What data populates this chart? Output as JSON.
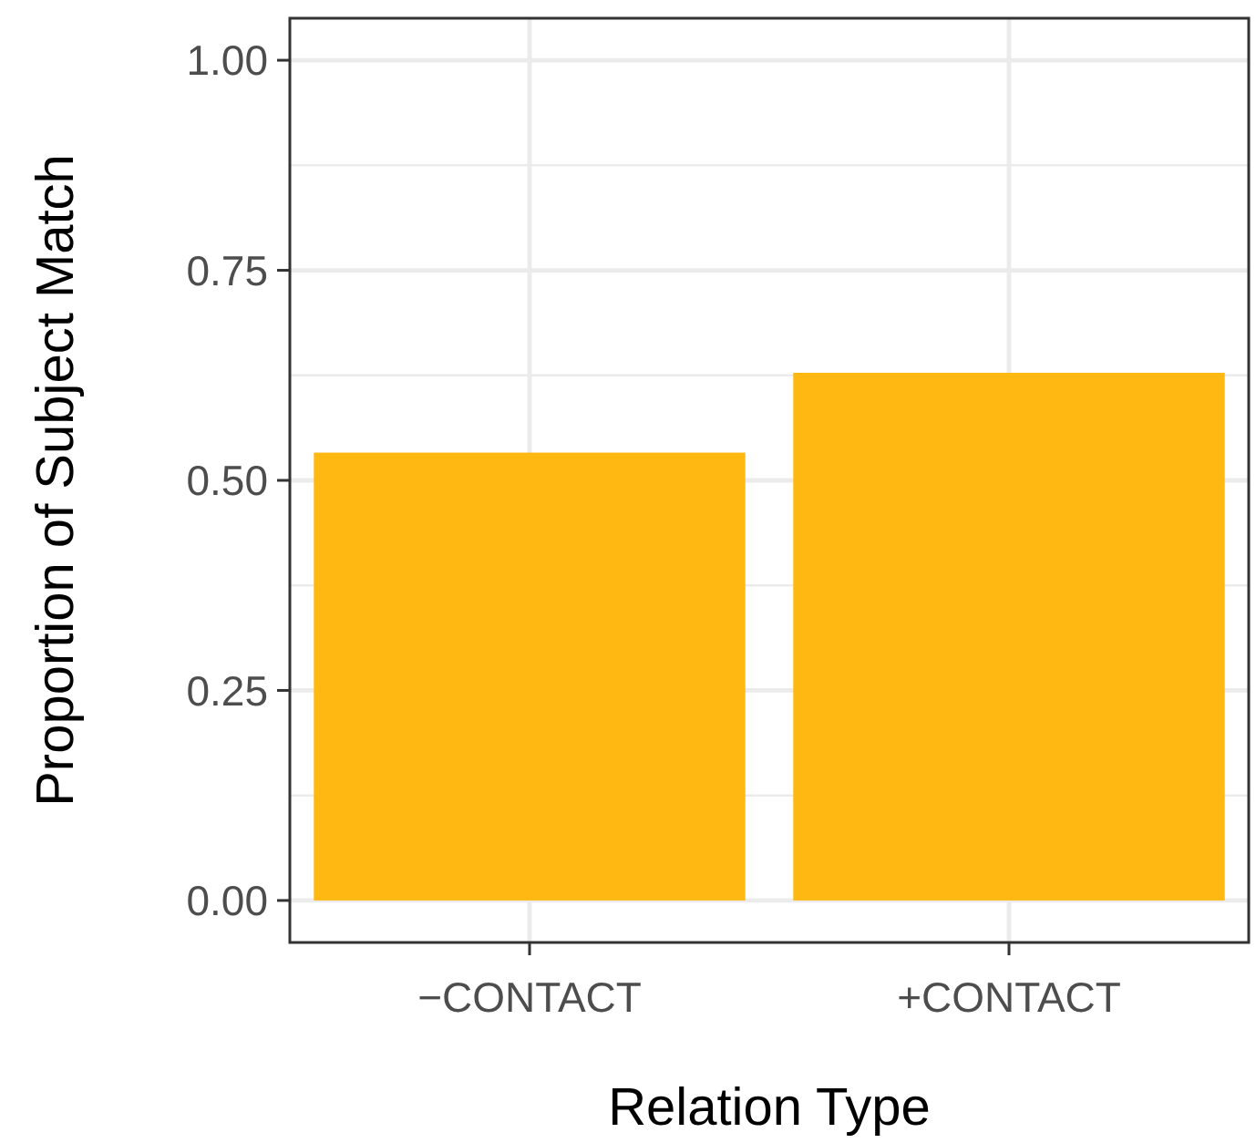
{
  "chart_data": {
    "type": "bar",
    "xlabel": "Relation Type",
    "ylabel": "Proportion of Subject Match",
    "categories": [
      "−CONTACT",
      "+CONTACT"
    ],
    "values": [
      0.533,
      0.628
    ],
    "color": "#ffb711",
    "ylim": [
      -0.05,
      1.05
    ],
    "yticks": [
      {
        "value": 0,
        "label": "0.00"
      },
      {
        "value": 0.25,
        "label": "0.25"
      },
      {
        "value": 0.5,
        "label": "0.50"
      },
      {
        "value": 0.75,
        "label": "0.75"
      },
      {
        "value": 1,
        "label": "1.00"
      }
    ],
    "grid": true
  }
}
